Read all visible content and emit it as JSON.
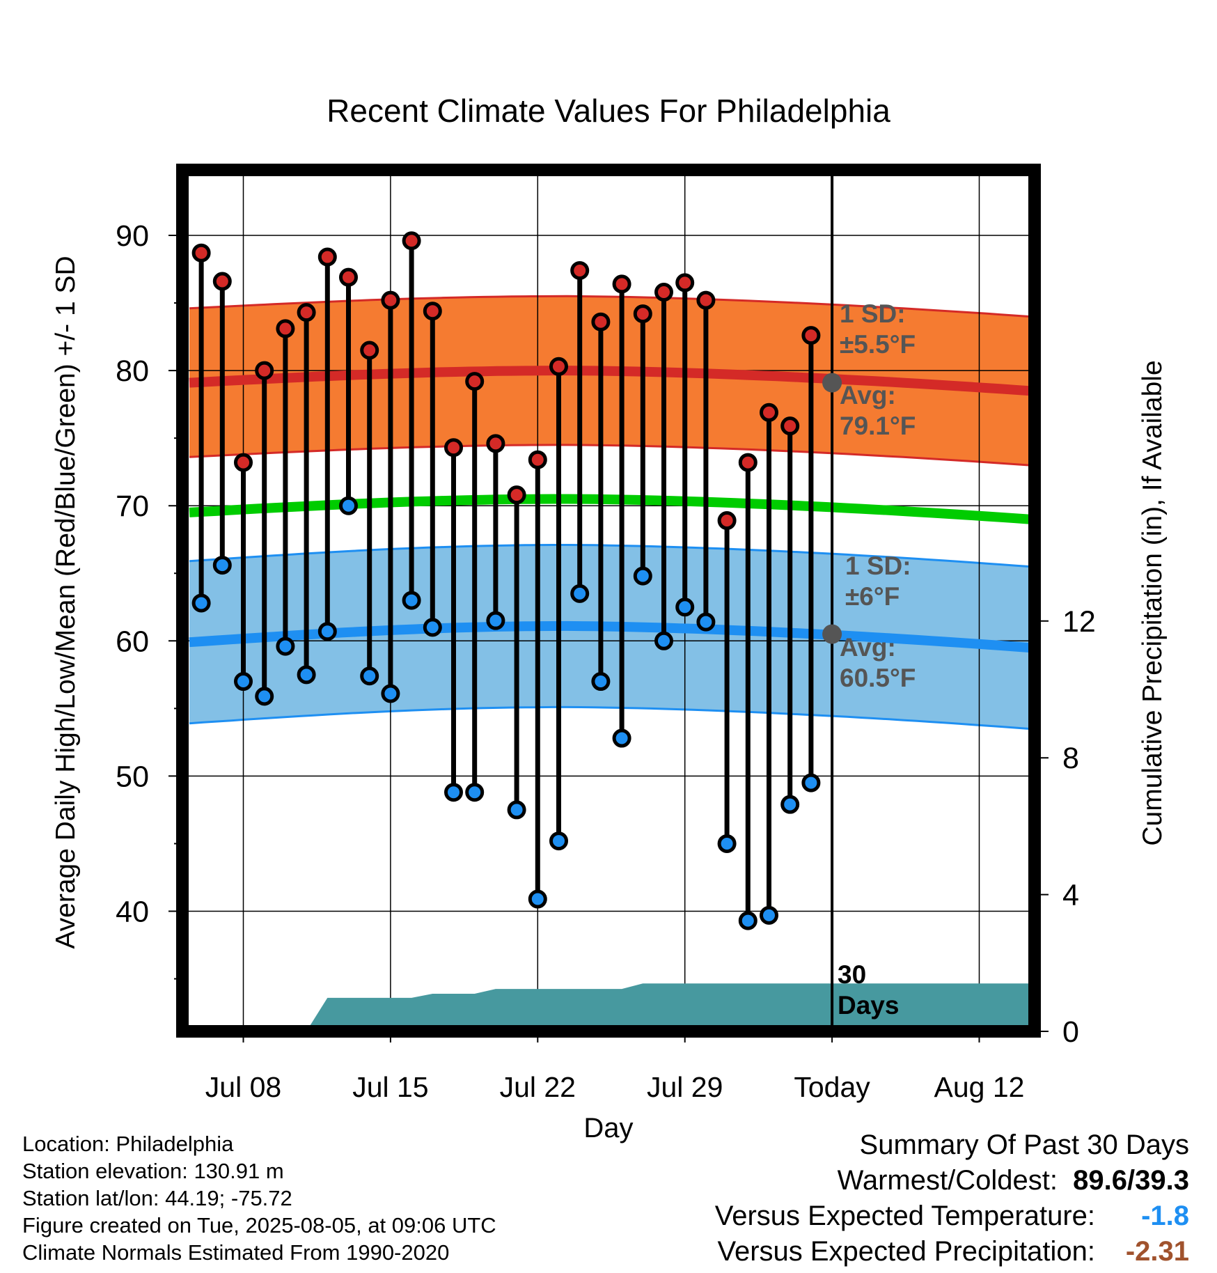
{
  "chart_data": {
    "type": "line",
    "title": "Recent Climate Values For Philadelphia",
    "xlabel": "Day",
    "ylabel": "Average Daily High/Low/Mean (Red/Blue/Green) +/- 1 SD",
    "y2label": "Cumulative Precipitation (in), If Available",
    "ylim": [
      31.5,
      95
    ],
    "y2lim": [
      0,
      20
    ],
    "y_ticks": [
      "40",
      "50",
      "60",
      "70",
      "80",
      "90"
    ],
    "y2_ticks": [
      "0",
      "4",
      "8",
      "12"
    ],
    "x_tick_labels": [
      "Jul 08",
      "Jul 15",
      "Jul 22",
      "Jul 29",
      "Today",
      "Aug 12"
    ],
    "grid": true,
    "days": [
      "Jul 06",
      "Jul 07",
      "Jul 08",
      "Jul 09",
      "Jul 10",
      "Jul 11",
      "Jul 12",
      "Jul 13",
      "Jul 14",
      "Jul 15",
      "Jul 16",
      "Jul 17",
      "Jul 18",
      "Jul 19",
      "Jul 20",
      "Jul 21",
      "Jul 22",
      "Jul 23",
      "Jul 24",
      "Jul 25",
      "Jul 26",
      "Jul 27",
      "Jul 28",
      "Jul 29",
      "Jul 30",
      "Jul 31",
      "Aug 01",
      "Aug 02",
      "Aug 03",
      "Aug 04"
    ],
    "highs": [
      88.7,
      86.6,
      73.2,
      80.0,
      83.1,
      84.3,
      88.4,
      86.9,
      81.5,
      85.2,
      89.6,
      84.4,
      74.3,
      79.2,
      74.6,
      70.8,
      73.4,
      80.3,
      87.4,
      83.6,
      86.4,
      84.2,
      85.8,
      86.5,
      85.2,
      68.9,
      73.2,
      76.9,
      75.9,
      82.6
    ],
    "lows": [
      62.8,
      65.6,
      57.0,
      55.9,
      59.6,
      57.5,
      60.7,
      70.0,
      57.4,
      56.1,
      63.0,
      61.0,
      48.8,
      48.8,
      61.5,
      47.5,
      40.9,
      45.2,
      63.5,
      57.0,
      52.8,
      64.8,
      60.0,
      62.5,
      61.4,
      45.0,
      39.3,
      39.7,
      47.9,
      49.5
    ],
    "normal_high": {
      "start": 79.1,
      "peak": 80.0,
      "end": 78.5,
      "sd": 5.5
    },
    "normal_low": {
      "start": 59.9,
      "peak": 61.1,
      "end": 59.5,
      "sd": 6
    },
    "normal_mean": {
      "start": 69.5,
      "peak": 70.5,
      "end": 69.0
    },
    "precip_cumulative": [
      {
        "day": "Jul 11",
        "value": 0
      },
      {
        "day": "Jul 12",
        "value": 0.98
      },
      {
        "day": "Jul 15",
        "value": 0.98
      },
      {
        "day": "Jul 16",
        "value": 0.98
      },
      {
        "day": "Jul 17",
        "value": 1.1
      },
      {
        "day": "Jul 19",
        "value": 1.1
      },
      {
        "day": "Jul 20",
        "value": 1.24
      },
      {
        "day": "Jul 26",
        "value": 1.24
      },
      {
        "day": "Jul 27",
        "value": 1.4
      },
      {
        "day": "Aug 15",
        "value": 1.4
      }
    ],
    "annotations": {
      "high_sd": [
        "1 SD:",
        "±5.5°F"
      ],
      "high_avg": [
        "Avg:",
        "79.1°F"
      ],
      "low_sd": [
        "1 SD:",
        "±6°F"
      ],
      "low_avg": [
        "Avg:",
        "60.5°F"
      ],
      "period": [
        "30",
        "Days"
      ],
      "today_high": 79.1,
      "today_low": 60.5
    },
    "colors": {
      "high_band": "#f57b31",
      "high_line": "#d42a27",
      "mean_line": "#00cc00",
      "low_band": "#83c0e6",
      "low_line": "#1e8ff2",
      "precip": "#47999f",
      "high_marker": "#d42a27",
      "low_marker": "#1e8ff2",
      "annotation": "#555555"
    }
  },
  "info": {
    "location": "Location: Philadelphia",
    "elevation": "Station elevation: 130.91 m",
    "latlon": "Station lat/lon: 44.19; -75.72",
    "created": "Figure created on Tue, 2025-08-05, at 09:06 UTC",
    "normals": "Climate Normals Estimated From 1990-2020"
  },
  "summary": {
    "title": "Summary Of Past 30 Days",
    "warm_cold_label": "Warmest/Coldest:",
    "warm_cold_value": "89.6/39.3",
    "temp_label": "Versus Expected Temperature:",
    "temp_value": "-1.8",
    "temp_color": "#1e8ff2",
    "precip_label": "Versus Expected Precipitation:",
    "precip_value": "-2.31",
    "precip_color": "#a0522d"
  }
}
